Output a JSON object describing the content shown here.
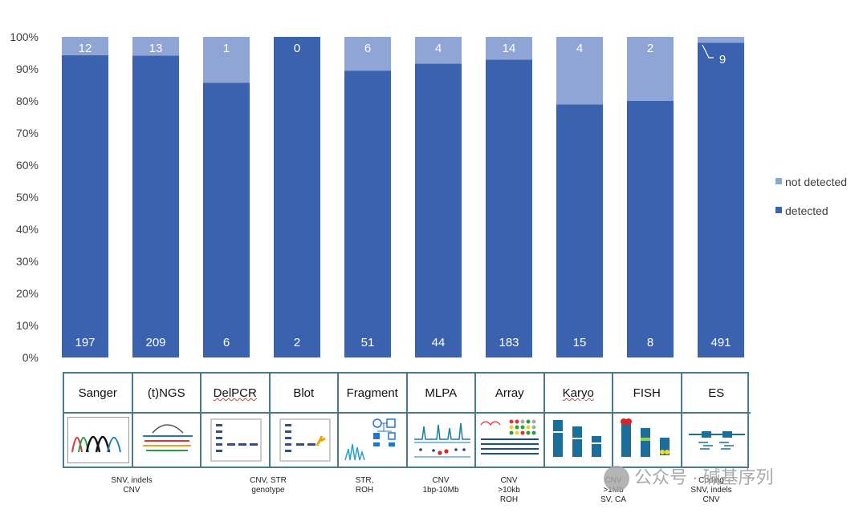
{
  "chart_data": {
    "type": "bar",
    "stacked": true,
    "normalized": true,
    "categories": [
      "Sanger",
      "(t)NGS",
      "DelPCR",
      "Blot",
      "Fragment",
      "MLPA",
      "Array",
      "Karyo",
      "FISH",
      "ES"
    ],
    "series": [
      {
        "name": "detected",
        "values": [
          197,
          209,
          6,
          2,
          51,
          44,
          183,
          15,
          8,
          491
        ],
        "color": "#3a62ae"
      },
      {
        "name": "not detected",
        "values": [
          12,
          13,
          1,
          0,
          6,
          4,
          14,
          4,
          2,
          9
        ],
        "color": "#8fa5d6"
      }
    ],
    "y_ticks": [
      "0%",
      "10%",
      "20%",
      "30%",
      "40%",
      "50%",
      "60%",
      "70%",
      "80%",
      "90%",
      "100%"
    ],
    "ylim": [
      0,
      100
    ],
    "grid": false,
    "legend": "right"
  },
  "methods": [
    {
      "name": "Sanger",
      "icon": "sanger-chromatogram-icon"
    },
    {
      "name": "(t)NGS",
      "icon": "ngs-reads-icon"
    },
    {
      "name": "DelPCR",
      "icon": "gel-bands-icon"
    },
    {
      "name": "Blot",
      "icon": "blot-gel-icon"
    },
    {
      "name": "Fragment",
      "icon": "pedigree-fragment-icon"
    },
    {
      "name": "MLPA",
      "icon": "mlpa-peaks-icon"
    },
    {
      "name": "Array",
      "icon": "microarray-icon"
    },
    {
      "name": "Karyo",
      "icon": "karyotype-chromosomes-icon"
    },
    {
      "name": "FISH",
      "icon": "fish-chromosomes-icon"
    },
    {
      "name": "ES",
      "icon": "exome-reads-icon"
    }
  ],
  "captions": [
    {
      "lines": [
        "SNV, indels",
        "CNV"
      ]
    },
    {
      "lines": [
        "CNV, STR",
        "genotype"
      ]
    },
    {
      "lines": [
        "STR,",
        "ROH"
      ]
    },
    {
      "lines": [
        "CNV",
        "1bp-10Mb"
      ]
    },
    {
      "lines": [
        "CNV",
        ">10kb",
        "ROH"
      ]
    },
    {
      "lines": [
        "CNV",
        ">1Mb",
        "SV, CA"
      ]
    },
    {
      "lines": [
        "Coding",
        "SNV, indels",
        "CNV"
      ]
    }
  ],
  "watermark": "公众号 · 碱基序列",
  "colors": {
    "detected": "#3a62ae",
    "not_detected": "#8fa5d6",
    "table_border": "#4a7b8c"
  }
}
